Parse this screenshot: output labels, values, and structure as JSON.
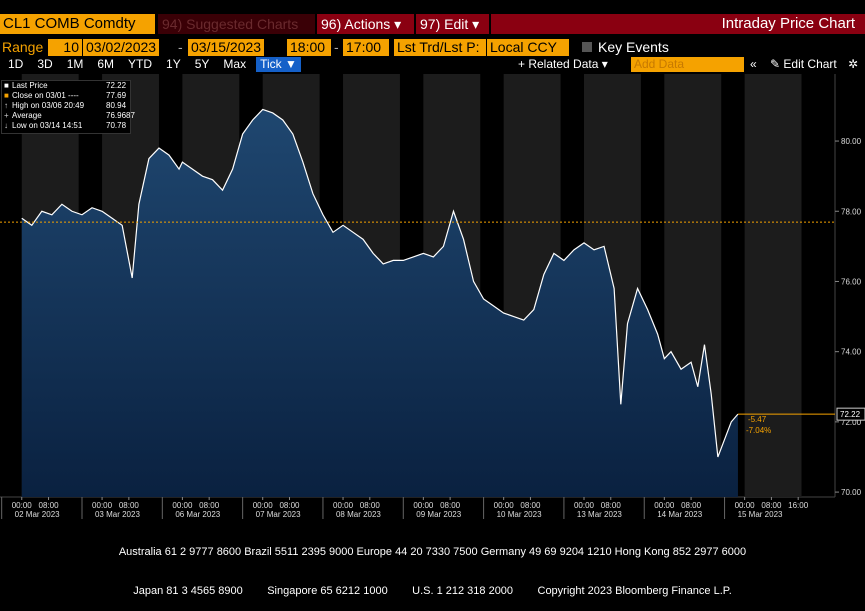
{
  "toolbar": {
    "ticker": "CL1 COMB Comdty",
    "suggested": "94) Suggested Charts",
    "actions": "96) Actions ▾",
    "edit": "97) Edit ▾",
    "chart_title": "Intraday Price Chart"
  },
  "range_bar": {
    "label": "Range",
    "period": "10",
    "start": "03/02/2023",
    "end": "03/15/2023",
    "time_start": "18:00",
    "time_end": "17:00",
    "price_field": "Lst Trd/Lst P:",
    "currency": "Local CCY",
    "key_events": "Key Events"
  },
  "period_buttons": [
    "1D",
    "3D",
    "1M",
    "6M",
    "YTD",
    "1Y",
    "5Y",
    "Max",
    "Tick ▼"
  ],
  "related_data": "+ Related Data ▾",
  "add_data": "Add Data",
  "edit_chart": "✎ Edit Chart",
  "legend": [
    {
      "label": "Last Price",
      "value": "72.22"
    },
    {
      "label": "Close on 03/01 ----",
      "value": "77.69"
    },
    {
      "label": "High on 03/06 20:49",
      "value": "80.94"
    },
    {
      "label": "Average",
      "value": "76.9687"
    },
    {
      "label": "Low on 03/14 14:51",
      "value": "70.78"
    }
  ],
  "chart_data": {
    "type": "area",
    "series": [
      {
        "name": "Last Price",
        "color": "#ffffff",
        "x": [
          0,
          3,
          6,
          9,
          12,
          15,
          18,
          21,
          24,
          27,
          30,
          33,
          35,
          38,
          41,
          44,
          47,
          48,
          51,
          54,
          57,
          60,
          63,
          66,
          69,
          72,
          75,
          78,
          81,
          84,
          87,
          90,
          93,
          96,
          99,
          102,
          105,
          108,
          111,
          114,
          117,
          120,
          123,
          126,
          129,
          132,
          135,
          138,
          141,
          144,
          147,
          150,
          153,
          156,
          159,
          162,
          165,
          168,
          171,
          174,
          177,
          179,
          181,
          184,
          187,
          190,
          192,
          194,
          197,
          200,
          202,
          204,
          206,
          208,
          210,
          212,
          214
        ],
        "values": [
          77.8,
          77.6,
          78.0,
          77.9,
          78.2,
          78.0,
          77.9,
          78.1,
          78.0,
          77.8,
          77.6,
          76.1,
          78.2,
          79.5,
          79.8,
          79.6,
          79.2,
          79.4,
          79.2,
          79.0,
          78.9,
          78.6,
          79.2,
          80.2,
          80.6,
          80.9,
          80.8,
          80.6,
          80.2,
          79.4,
          78.5,
          77.9,
          77.4,
          77.6,
          77.4,
          77.2,
          76.8,
          76.5,
          76.6,
          76.6,
          76.7,
          76.8,
          76.7,
          77.0,
          78.0,
          77.2,
          76.0,
          75.5,
          75.3,
          75.1,
          75.0,
          74.9,
          75.2,
          76.2,
          76.8,
          76.6,
          76.9,
          77.1,
          76.9,
          77.0,
          75.8,
          72.5,
          74.8,
          75.8,
          75.2,
          74.5,
          73.8,
          74.0,
          73.5,
          73.7,
          73.0,
          74.2,
          72.8,
          71.0,
          71.5,
          72.0,
          72.22
        ]
      }
    ],
    "close_value": 77.69,
    "last_value": 72.22,
    "last_label": "72.22",
    "change": "-5.47",
    "change_pct": "-7.04%",
    "ylim": [
      69.86,
      81.91
    ],
    "yticks": [
      {
        "value": 70,
        "label": "70.00"
      },
      {
        "value": 72,
        "label": "72.00"
      },
      {
        "value": 74,
        "label": "74.00"
      },
      {
        "value": 76,
        "label": "76.00"
      },
      {
        "value": 78,
        "label": "78.00"
      },
      {
        "value": 80,
        "label": "80.00"
      }
    ],
    "xlim": [
      -6.5,
      243
    ],
    "xticks": [
      {
        "value": 0,
        "label": "00:00"
      },
      {
        "value": 8,
        "label": "08:00"
      },
      {
        "value": 24,
        "label": "00:00"
      },
      {
        "value": 32,
        "label": "08:00"
      },
      {
        "value": 48,
        "label": "00:00"
      },
      {
        "value": 56,
        "label": "08:00"
      },
      {
        "value": 72,
        "label": "00:00"
      },
      {
        "value": 80,
        "label": "08:00"
      },
      {
        "value": 96,
        "label": "00:00"
      },
      {
        "value": 104,
        "label": "08:00"
      },
      {
        "value": 120,
        "label": "00:00"
      },
      {
        "value": 128,
        "label": "08:00"
      },
      {
        "value": 144,
        "label": "00:00"
      },
      {
        "value": 152,
        "label": "08:00"
      },
      {
        "value": 168,
        "label": "00:00"
      },
      {
        "value": 176,
        "label": "08:00"
      },
      {
        "value": 192,
        "label": "00:00"
      },
      {
        "value": 200,
        "label": "08:00"
      },
      {
        "value": 216,
        "label": "00:00"
      },
      {
        "value": 224,
        "label": "08:00"
      },
      {
        "value": 232,
        "label": "16:00"
      }
    ],
    "date_labels": [
      {
        "value": 4,
        "label": "02 Mar 2023"
      },
      {
        "value": 28,
        "label": "03 Mar 2023"
      },
      {
        "value": 52,
        "label": "06 Mar 2023"
      },
      {
        "value": 76,
        "label": "07 Mar 2023"
      },
      {
        "value": 100,
        "label": "08 Mar 2023"
      },
      {
        "value": 124,
        "label": "09 Mar 2023"
      },
      {
        "value": 148,
        "label": "10 Mar 2023"
      },
      {
        "value": 172,
        "label": "13 Mar 2023"
      },
      {
        "value": 196,
        "label": "14 Mar 2023"
      },
      {
        "value": 220,
        "label": "15 Mar 2023"
      }
    ]
  },
  "footer": [
    "Australia 61 2 9777 8600 Brazil 5511 2395 9000 Europe 44 20 7330 7500 Germany 49 69 9204 1210 Hong Kong 852 2977 6000",
    "Japan 81 3 4565 8900        Singapore 65 6212 1000        U.S. 1 212 318 2000        Copyright 2023 Bloomberg Finance L.P."
  ]
}
